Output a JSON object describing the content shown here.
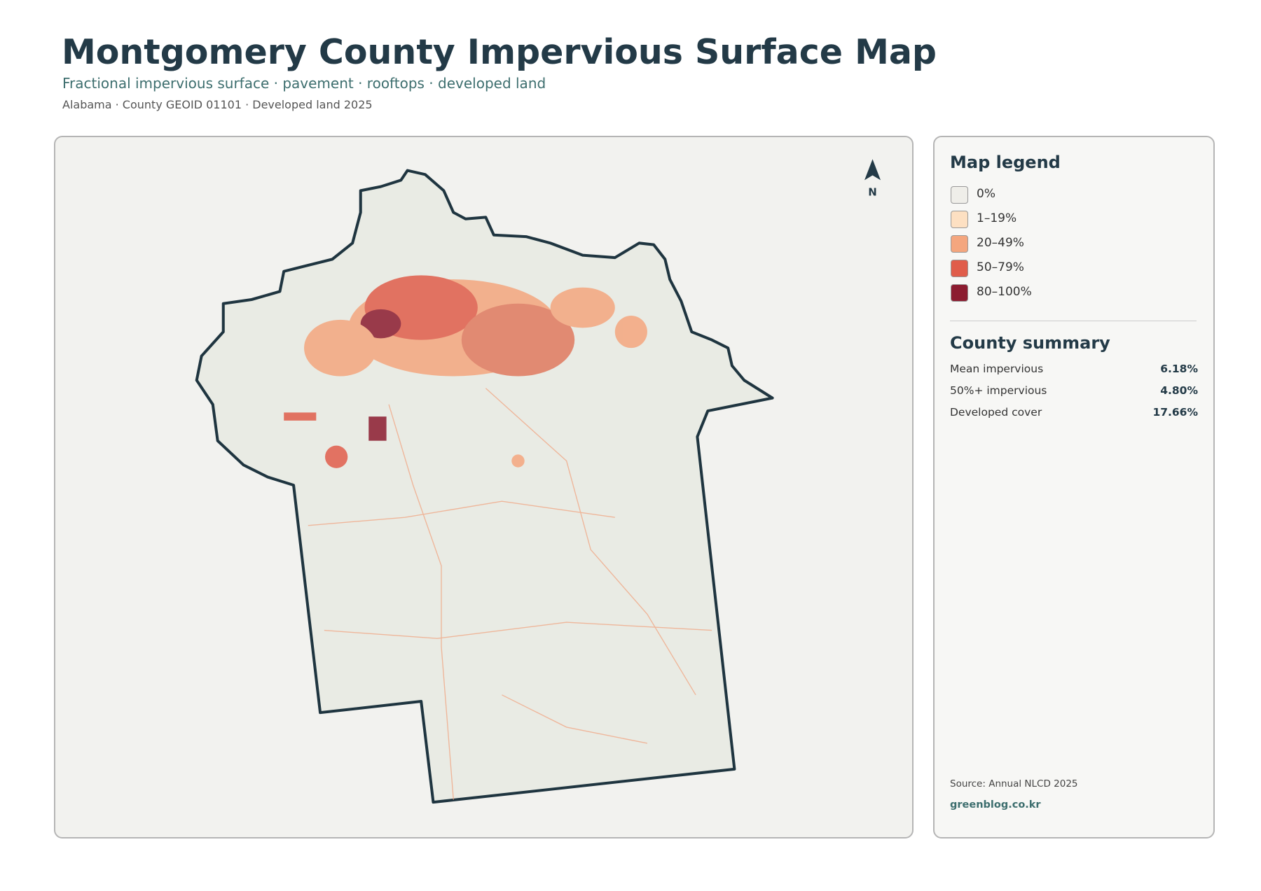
{
  "header": {
    "title": "Montgomery County Impervious Surface Map",
    "subtitle": "Fractional impervious surface · pavement · rooftops · developed land",
    "meta": "Alabama · County GEOID 01101 · Developed land 2025"
  },
  "map": {
    "north_label": "N"
  },
  "legend": {
    "title": "Map legend",
    "items": [
      {
        "label": "0%",
        "color": "#efeee9"
      },
      {
        "label": "1–19%",
        "color": "#fde0c2"
      },
      {
        "label": "20–49%",
        "color": "#f4a67e"
      },
      {
        "label": "50–79%",
        "color": "#e05d4b"
      },
      {
        "label": "80–100%",
        "color": "#8c1c30"
      }
    ]
  },
  "summary": {
    "title": "County summary",
    "rows": [
      {
        "label": "Mean impervious",
        "value": "6.18%"
      },
      {
        "label": "50%+ impervious",
        "value": "4.80%"
      },
      {
        "label": "Developed cover",
        "value": "17.66%"
      }
    ]
  },
  "footer": {
    "source": "Source: Annual NLCD 2025",
    "site": "greenblog.co.kr"
  }
}
